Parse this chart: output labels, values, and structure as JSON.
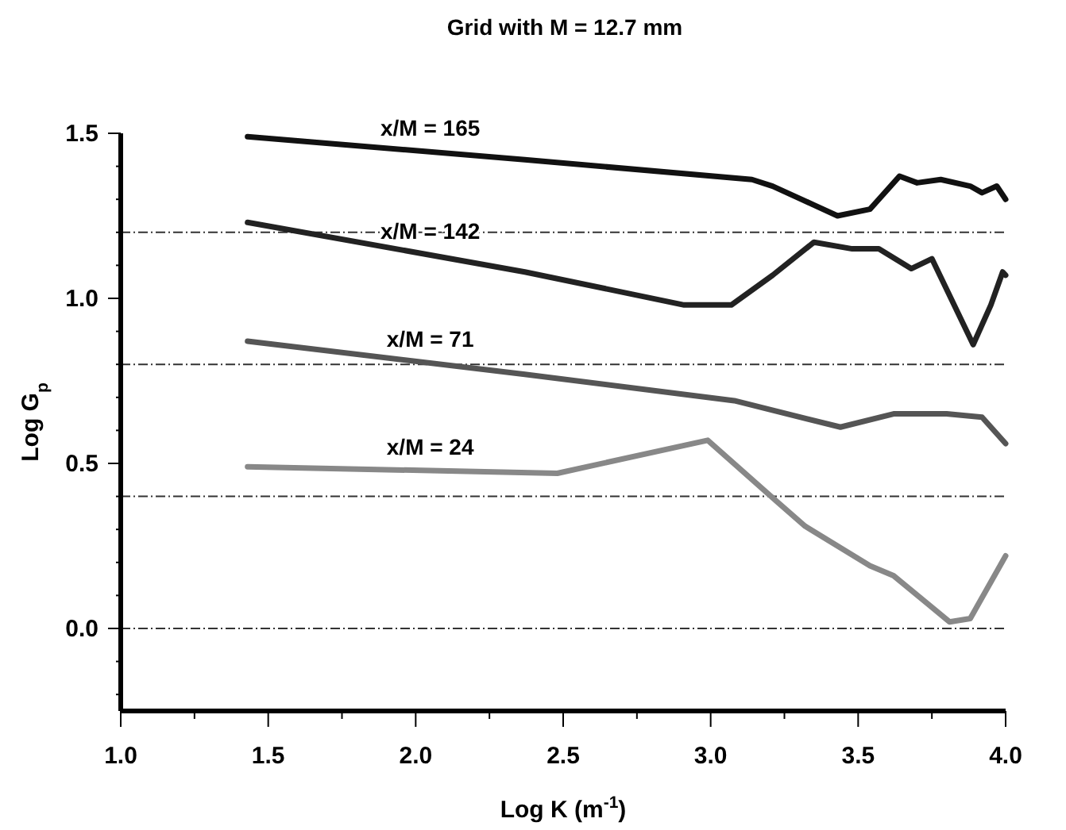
{
  "chart_data": {
    "type": "line",
    "title": "Grid with M = 12.7 mm",
    "xlabel": "Log K (m$^{-1}$)",
    "ylabel": "Log G$_{p}$",
    "xlim": [
      1.0,
      4.0
    ],
    "ylim": [
      -0.25,
      1.5
    ],
    "xticks": [
      {
        "value": 1,
        "label": "1.0"
      },
      {
        "value": 1.25,
        "label": null
      },
      {
        "value": 1.5,
        "label": "1.5"
      },
      {
        "value": 1.75,
        "label": null
      },
      {
        "value": 2,
        "label": "2.0"
      },
      {
        "value": 2.25,
        "label": null
      },
      {
        "value": 2.5,
        "label": "2.5"
      },
      {
        "value": 2.75,
        "label": null
      },
      {
        "value": 3,
        "label": "3.0"
      },
      {
        "value": 3.25,
        "label": null
      },
      {
        "value": 3.5,
        "label": "3.5"
      },
      {
        "value": 3.75,
        "label": null
      },
      {
        "value": 4,
        "label": "4.0"
      }
    ],
    "yticks": [
      {
        "value": -0.2,
        "label": null
      },
      {
        "value": -0.1,
        "label": null
      },
      {
        "value": 0,
        "label": "0.0"
      },
      {
        "value": 0.1,
        "label": null
      },
      {
        "value": 0.2,
        "label": null
      },
      {
        "value": 0.3,
        "label": null
      },
      {
        "value": 0.4,
        "label": null
      },
      {
        "value": 0.5,
        "label": "0.5"
      },
      {
        "value": 0.6,
        "label": null
      },
      {
        "value": 0.7,
        "label": null
      },
      {
        "value": 0.8,
        "label": null
      },
      {
        "value": 0.9,
        "label": null
      },
      {
        "value": 1.0,
        "label": "1.0"
      },
      {
        "value": 1.1,
        "label": null
      },
      {
        "value": 1.2,
        "label": null
      },
      {
        "value": 1.3,
        "label": null
      },
      {
        "value": 1.4,
        "label": null
      },
      {
        "value": 1.5,
        "label": "1.5"
      }
    ],
    "grid": false,
    "marker": "none",
    "line_style": "solid",
    "ref_lines": [
      {
        "axis": "y",
        "value": 0,
        "line_style": "dashed",
        "color": "#333333"
      },
      {
        "axis": "y",
        "value": 0.4,
        "line_style": "dashed",
        "color": "#333333"
      },
      {
        "axis": "y",
        "value": 0.8,
        "line_style": "dashed",
        "color": "#333333"
      },
      {
        "axis": "y",
        "value": 1.2,
        "line_style": "dashed",
        "color": "#333333"
      }
    ],
    "series": [
      {
        "name": "x/M = 165",
        "color": "#111111",
        "x": [
          1.43,
          2.37,
          3.14,
          3.21,
          3.43,
          3.54,
          3.64,
          3.7,
          3.78,
          3.88,
          3.92,
          3.97,
          4.0
        ],
        "values": [
          1.49,
          1.42,
          1.36,
          1.34,
          1.25,
          1.27,
          1.37,
          1.35,
          1.36,
          1.34,
          1.32,
          1.34,
          1.3
        ]
      },
      {
        "name": "x/M = 142",
        "color": "#222222",
        "x": [
          1.43,
          2.37,
          2.91,
          3.07,
          3.21,
          3.35,
          3.48,
          3.57,
          3.68,
          3.75,
          3.89,
          3.95,
          3.99,
          4.0
        ],
        "values": [
          1.23,
          1.08,
          0.98,
          0.98,
          1.07,
          1.17,
          1.15,
          1.15,
          1.09,
          1.12,
          0.86,
          0.98,
          1.08,
          1.07
        ]
      },
      {
        "name": "x/M = 71",
        "color": "#555555",
        "x": [
          1.43,
          2.37,
          3.08,
          3.44,
          3.62,
          3.8,
          3.92,
          4.0
        ],
        "values": [
          0.87,
          0.77,
          0.69,
          0.61,
          0.65,
          0.65,
          0.64,
          0.56
        ]
      },
      {
        "name": "x/M = 24",
        "color": "#888888",
        "x": [
          1.43,
          2.48,
          2.99,
          3.23,
          3.32,
          3.54,
          3.62,
          3.81,
          3.88,
          4.0
        ],
        "values": [
          0.49,
          0.47,
          0.57,
          0.38,
          0.31,
          0.19,
          0.16,
          0.02,
          0.03,
          0.22
        ]
      }
    ]
  }
}
